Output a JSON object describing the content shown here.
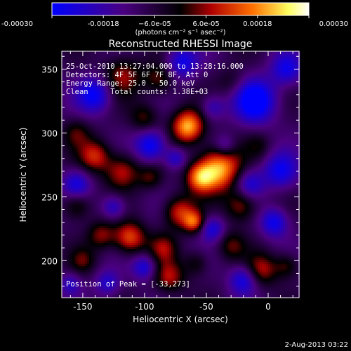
{
  "chart_data": {
    "type": "heatmap",
    "title": "Reconstructed RHESSI Image",
    "xlabel": "Heliocentric X (arcsec)",
    "ylabel": "Heliocentric Y (arcsec)",
    "xlim": [
      -167,
      25
    ],
    "ylim": [
      171,
      364
    ],
    "xticks": [
      -150,
      -100,
      -50,
      0
    ],
    "yticks": [
      200,
      250,
      300,
      350
    ],
    "colorbar": {
      "min": -0.0003,
      "max": 0.0003,
      "tick_values": [
        -0.0003,
        -0.00018,
        -6e-05,
        6e-05,
        0.00018,
        0.0003
      ],
      "tick_labels": [
        "-0.00030",
        "-0.00018",
        "−6.0e-05",
        "6.0e-05",
        "0.00018",
        "0.00030"
      ],
      "units": "(photons cm⁻² s⁻¹ asec⁻²)",
      "colors": [
        "#0000ff",
        "#4a0080",
        "#000000",
        "#b00000",
        "#ff7000",
        "#ffff60",
        "#ffffff"
      ]
    },
    "annotations": [
      "25-Oct-2010 13:27:04.000 to 13:28:16.000",
      "Detectors: 4F 5F 6F 7F 8F, Att 0",
      "Energy Range: 25.0 - 50.0 keV",
      "Clean     Total counts: 1.38E+03"
    ],
    "peak_label": "Position of Peak = [-33,273]",
    "peak": [
      -33,
      273
    ],
    "blobs": [
      {
        "x": -65,
        "y": 305,
        "r": 9,
        "v": 0.0003
      },
      {
        "x": -40,
        "y": 272,
        "r": 12,
        "v": 0.0003
      },
      {
        "x": -55,
        "y": 265,
        "r": 8,
        "v": 0.00022
      },
      {
        "x": -22,
        "y": 243,
        "r": 9,
        "v": 0.00016
      },
      {
        "x": -72,
        "y": 238,
        "r": 9,
        "v": 0.00019
      },
      {
        "x": -60,
        "y": 230,
        "r": 6,
        "v": 0.0002
      },
      {
        "x": -118,
        "y": 345,
        "r": 11,
        "v": 0.00015
      },
      {
        "x": -88,
        "y": 342,
        "r": 9,
        "v": 0.00013
      },
      {
        "x": -100,
        "y": 312,
        "r": 8,
        "v": 0.00012
      },
      {
        "x": -155,
        "y": 300,
        "r": 8,
        "v": 0.0001
      },
      {
        "x": -140,
        "y": 282,
        "r": 9,
        "v": 0.00018
      },
      {
        "x": -118,
        "y": 270,
        "r": 10,
        "v": 0.00017
      },
      {
        "x": -95,
        "y": 265,
        "r": 7,
        "v": 0.00011
      },
      {
        "x": -155,
        "y": 243,
        "r": 8,
        "v": 0.00013
      },
      {
        "x": -135,
        "y": 220,
        "r": 8,
        "v": 0.00014
      },
      {
        "x": -112,
        "y": 218,
        "r": 9,
        "v": 0.00022
      },
      {
        "x": -85,
        "y": 210,
        "r": 8,
        "v": 0.00013
      },
      {
        "x": -80,
        "y": 187,
        "r": 9,
        "v": 0.00016
      },
      {
        "x": -58,
        "y": 198,
        "r": 7,
        "v": 0.0001
      },
      {
        "x": -150,
        "y": 200,
        "r": 7,
        "v": 0.0001
      },
      {
        "x": -5,
        "y": 193,
        "r": 9,
        "v": 0.00016
      },
      {
        "x": 15,
        "y": 196,
        "r": 7,
        "v": 0.00012
      },
      {
        "x": -30,
        "y": 212,
        "r": 8,
        "v": 0.00011
      },
      {
        "x": -30,
        "y": 340,
        "r": 8,
        "v": 7e-05
      },
      {
        "x": -8,
        "y": 290,
        "r": 7,
        "v": 7e-05
      },
      {
        "x": -45,
        "y": 320,
        "r": 7,
        "v": -0.00012
      },
      {
        "x": -10,
        "y": 325,
        "r": 12,
        "v": -0.00025
      },
      {
        "x": 10,
        "y": 270,
        "r": 10,
        "v": -0.00018
      },
      {
        "x": -15,
        "y": 260,
        "r": 8,
        "v": -0.00015
      },
      {
        "x": -140,
        "y": 330,
        "r": 10,
        "v": -0.0002
      },
      {
        "x": -155,
        "y": 260,
        "r": 8,
        "v": -0.00016
      },
      {
        "x": -95,
        "y": 290,
        "r": 9,
        "v": -0.00022
      },
      {
        "x": -70,
        "y": 355,
        "r": 9,
        "v": -0.00018
      },
      {
        "x": -125,
        "y": 242,
        "r": 7,
        "v": -0.00015
      },
      {
        "x": -100,
        "y": 195,
        "r": 7,
        "v": -0.00017
      },
      {
        "x": -45,
        "y": 225,
        "r": 7,
        "v": -0.00016
      },
      {
        "x": -20,
        "y": 185,
        "r": 8,
        "v": -0.00018
      },
      {
        "x": 5,
        "y": 230,
        "r": 8,
        "v": -0.00019
      },
      {
        "x": -130,
        "y": 182,
        "r": 7,
        "v": -0.00014
      },
      {
        "x": 15,
        "y": 350,
        "r": 9,
        "v": -0.00017
      },
      {
        "x": -35,
        "y": 290,
        "r": 6,
        "v": -0.00012
      },
      {
        "x": -160,
        "y": 182,
        "r": 6,
        "v": -0.00012
      },
      {
        "x": -75,
        "y": 280,
        "r": 6,
        "v": -0.00014
      }
    ]
  },
  "footer": {
    "timestamp": "2-Aug-2013 03:22"
  }
}
